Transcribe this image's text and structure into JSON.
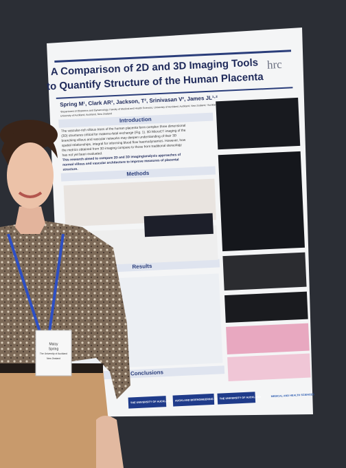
{
  "poster": {
    "title": [
      "A Comparison of 2D and 3D Imaging Tools",
      "to Quantify Structure of the Human Placenta"
    ],
    "logo": "hrc",
    "authors": "Spring M¹, Clark AR², Jackson, T², Srinivasan V², James JL¹·²",
    "affiliation": [
      "¹Department of Obstetrics and Gynaecology, Faculty of Medical and Health Sciences, University of Auckland, Auckland, New Zealand; ²Auckland Bioengineering Institute,",
      "University of Auckland, Auckland, New Zealand"
    ],
    "sections": [
      {
        "heading": "Introduction",
        "lines": [
          "The vascular-rich villous trees of the human placenta form complex three dimensional",
          "(3D) structures critical for materno-fetal exchange (Fig. 1). 3D MicroCT imaging of the",
          "branching villous and vascular networks may deepen understanding of their 3D",
          "spatial relationships, integral for informing blood flow haemodynamics. However, how",
          "the metrics obtained from 3D imaging compare to those from traditional stereology",
          "has not yet been evaluated.",
          "This research aimed to compare 2D and 3D imaging/analysis approaches of",
          "normal villous and vascular architecture to improve measures of placental",
          "structure."
        ]
      },
      {
        "heading": "Methods",
        "lines": []
      },
      {
        "heading": "Results",
        "lines": []
      },
      {
        "heading": "Conclusions",
        "lines": []
      }
    ],
    "logos": [
      "THE UNIVERSITY OF AUCKLAND",
      "AUCKLAND BIOENGINEERING INSTITUTE",
      "THE UNIVERSITY OF AUCKLAND",
      "MEDICAL AND HEALTH SCIENCES"
    ]
  },
  "badge": {
    "lines": [
      "Maisy",
      "Spring",
      "The University of Auckland",
      "New Zealand"
    ]
  }
}
